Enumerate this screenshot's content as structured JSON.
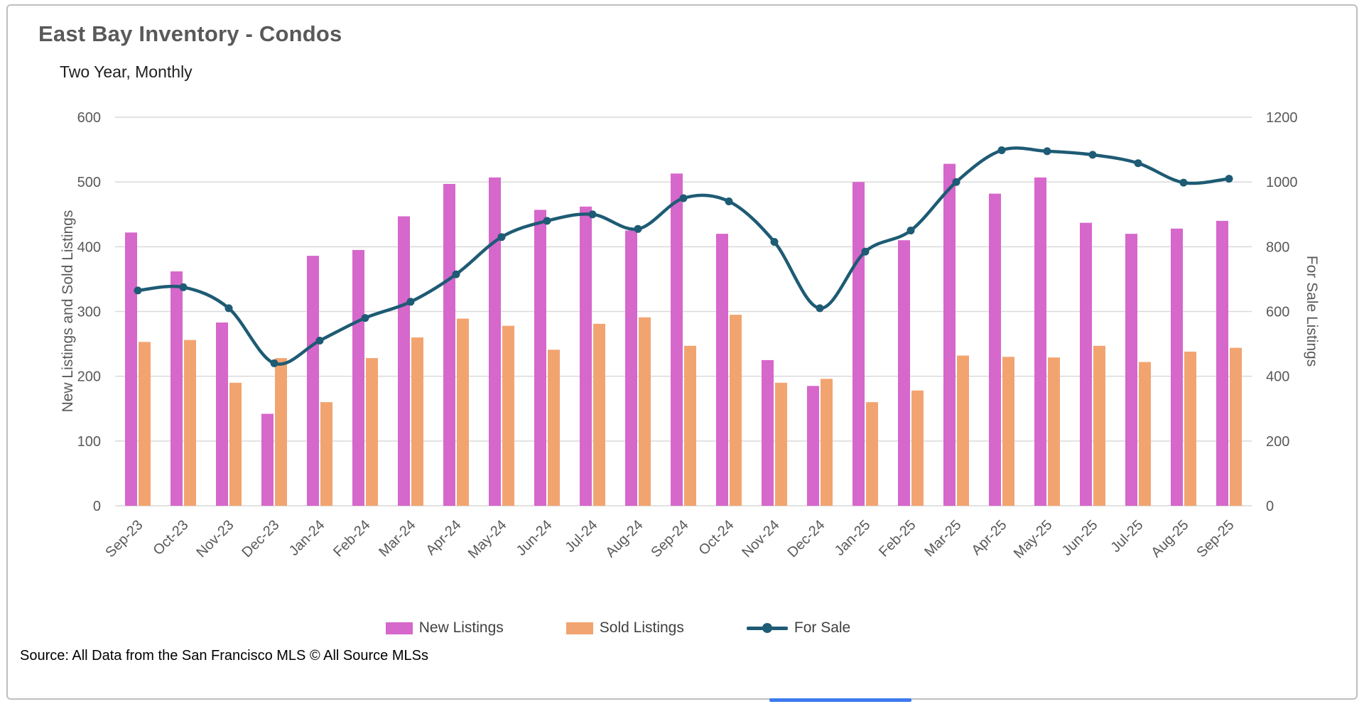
{
  "chart": {
    "title": "East Bay Inventory - Condos",
    "subtitle": "Two Year, Monthly",
    "left_axis_label": "New Listings and Sold Listings",
    "right_axis_label": "For Sale Listings",
    "source": "Source: All Data from the San Francisco MLS © All Source MLSs"
  },
  "colors": {
    "new_listings": "#D667CB",
    "sold_listings": "#F2A470",
    "for_sale_line": "#1E5B74",
    "gridline": "#D9D9D9",
    "bottom_accent": "#3D7BF0"
  },
  "chart_data": {
    "type": "combo (bar + line)",
    "categories": [
      "Sep-23",
      "Oct-23",
      "Nov-23",
      "Dec-23",
      "Jan-24",
      "Feb-24",
      "Mar-24",
      "Apr-24",
      "May-24",
      "Jun-24",
      "Jul-24",
      "Aug-24",
      "Sep-24",
      "Oct-24",
      "Nov-24",
      "Dec-24",
      "Jan-25",
      "Feb-25",
      "Mar-25",
      "Apr-25",
      "May-25",
      "Jun-25",
      "Jul-25",
      "Aug-25",
      "Sep-25"
    ],
    "series": [
      {
        "name": "New Listings",
        "type": "bar",
        "axis": "left",
        "color": "#D667CB",
        "values": [
          422,
          362,
          283,
          142,
          386,
          395,
          447,
          497,
          507,
          457,
          462,
          425,
          513,
          420,
          225,
          185,
          500,
          410,
          528,
          482,
          507,
          437,
          420,
          428,
          440
        ]
      },
      {
        "name": "Sold Listings",
        "type": "bar",
        "axis": "left",
        "color": "#F2A470",
        "values": [
          253,
          256,
          190,
          228,
          160,
          228,
          260,
          289,
          278,
          241,
          281,
          291,
          247,
          295,
          190,
          196,
          160,
          178,
          232,
          230,
          229,
          247,
          222,
          238,
          244
        ]
      },
      {
        "name": "For Sale",
        "type": "line",
        "axis": "right",
        "color": "#1E5B74",
        "values": [
          665,
          675,
          610,
          440,
          510,
          580,
          630,
          715,
          830,
          880,
          900,
          855,
          950,
          940,
          815,
          610,
          785,
          850,
          1000,
          1098,
          1095,
          1084,
          1058,
          998,
          1010
        ]
      }
    ],
    "left_axis": {
      "min": 0,
      "max": 600,
      "step": 100,
      "title": "New Listings and Sold Listings"
    },
    "right_axis": {
      "min": 0,
      "max": 1200,
      "step": 200,
      "title": "For Sale Listings"
    },
    "grid": true,
    "legend_position": "bottom",
    "x_label_rotation": -45
  }
}
